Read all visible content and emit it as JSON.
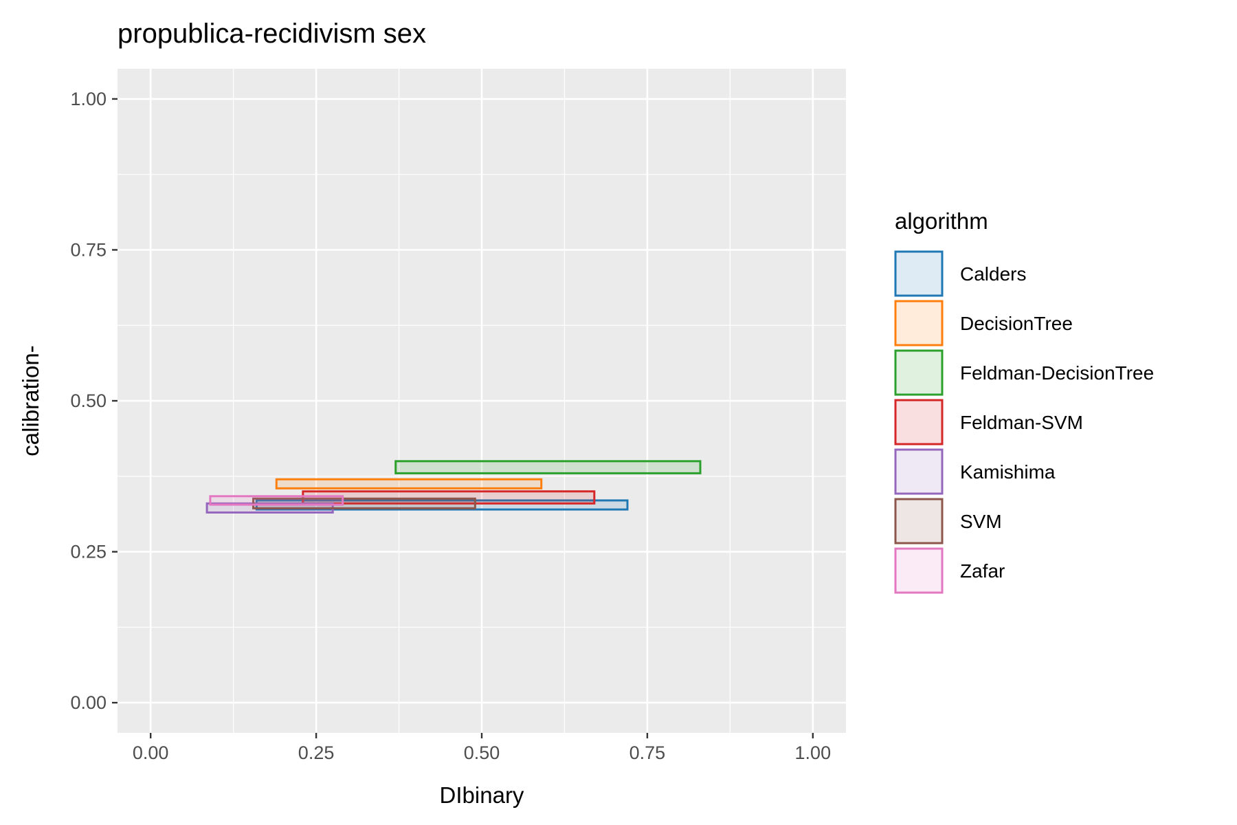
{
  "chart_data": {
    "type": "rect",
    "title": "propublica-recidivism sex",
    "xlabel": "DIbinary",
    "ylabel": "calibration-",
    "xlim": [
      -0.05,
      1.05
    ],
    "ylim": [
      -0.05,
      1.05
    ],
    "x_ticks": [
      "0.00",
      "0.25",
      "0.50",
      "0.75",
      "1.00"
    ],
    "y_ticks": [
      "0.00",
      "0.25",
      "0.50",
      "0.75",
      "1.00"
    ],
    "grid": true,
    "legend": {
      "title": "algorithm",
      "position": "right"
    },
    "series": [
      {
        "name": "Calders",
        "color": "#1f77b4",
        "xmin": 0.16,
        "xmax": 0.72,
        "ymin": 0.32,
        "ymax": 0.335
      },
      {
        "name": "DecisionTree",
        "color": "#ff7f0e",
        "xmin": 0.19,
        "xmax": 0.59,
        "ymin": 0.355,
        "ymax": 0.37
      },
      {
        "name": "Feldman-DecisionTree",
        "color": "#2ca02c",
        "xmin": 0.37,
        "xmax": 0.83,
        "ymin": 0.38,
        "ymax": 0.4
      },
      {
        "name": "Feldman-SVM",
        "color": "#d62728",
        "xmin": 0.23,
        "xmax": 0.67,
        "ymin": 0.33,
        "ymax": 0.35
      },
      {
        "name": "Kamishima",
        "color": "#9467bd",
        "xmin": 0.085,
        "xmax": 0.275,
        "ymin": 0.315,
        "ymax": 0.33
      },
      {
        "name": "SVM",
        "color": "#8c564b",
        "xmin": 0.155,
        "xmax": 0.49,
        "ymin": 0.322,
        "ymax": 0.338
      },
      {
        "name": "Zafar",
        "color": "#e377c2",
        "xmin": 0.09,
        "xmax": 0.29,
        "ymin": 0.328,
        "ymax": 0.342
      }
    ]
  }
}
